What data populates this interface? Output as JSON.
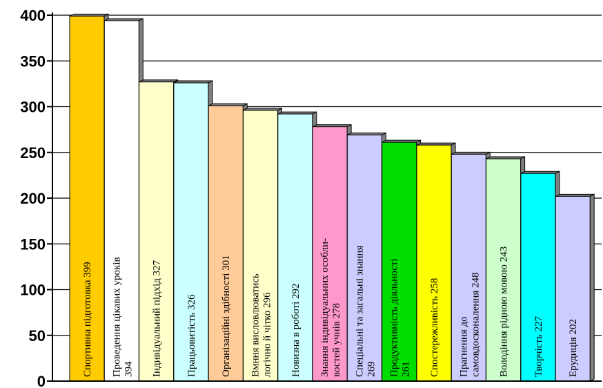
{
  "chart_data": {
    "type": "bar",
    "ylim": [
      0,
      400
    ],
    "yticks": [
      "0",
      "50",
      "100",
      "150",
      "200",
      "250",
      "300",
      "350",
      "400"
    ],
    "grid": true,
    "bars": [
      {
        "lines": [
          "Спортивна підготовка  399"
        ],
        "value": 399,
        "color": "#FFCC00"
      },
      {
        "lines": [
          "Проведення цікавих уроків",
          "394"
        ],
        "value": 394,
        "color": "#FFFFFF"
      },
      {
        "lines": [
          "Індивідуальний підхід  327"
        ],
        "value": 327,
        "color": "#FFFFCC"
      },
      {
        "lines": [
          "Працьовитість  326"
        ],
        "value": 326,
        "color": "#CCFFFF"
      },
      {
        "lines": [
          "Організаційні здібності  301"
        ],
        "value": 301,
        "color": "#FFCC99"
      },
      {
        "lines": [
          "Вмння висловлюватись",
          "логічно й чітко  296"
        ],
        "value": 296,
        "color": "#FFFFCC"
      },
      {
        "lines": [
          "Новизна в роботі  292"
        ],
        "value": 292,
        "color": "#CCFFFF"
      },
      {
        "lines": [
          "Знання індивідуальних особли-",
          "востей учнів  278"
        ],
        "value": 278,
        "color": "#FF99CC"
      },
      {
        "lines": [
          "Спеціальні та загальні знання",
          "269"
        ],
        "value": 269,
        "color": "#CCCCFF"
      },
      {
        "lines": [
          "Продуктивність діяльності",
          "261"
        ],
        "value": 261,
        "color": "#00DD00"
      },
      {
        "lines": [
          "Спостережливість  258"
        ],
        "value": 258,
        "color": "#FFFF00"
      },
      {
        "lines": [
          "Прагнення до",
          "самовдосконалення 248"
        ],
        "value": 248,
        "color": "#CCCCFF"
      },
      {
        "lines": [
          "Володіння рідною мовою  243"
        ],
        "value": 243,
        "color": "#CCFFCC"
      },
      {
        "lines": [
          "Творчість  227"
        ],
        "value": 227,
        "color": "#00FFFF"
      },
      {
        "lines": [
          "Ерудиція  202"
        ],
        "value": 202,
        "color": "#CCCCFF"
      }
    ],
    "colors": {
      "depth": "#808080",
      "grid": "#000000",
      "axis": "#000000"
    }
  }
}
